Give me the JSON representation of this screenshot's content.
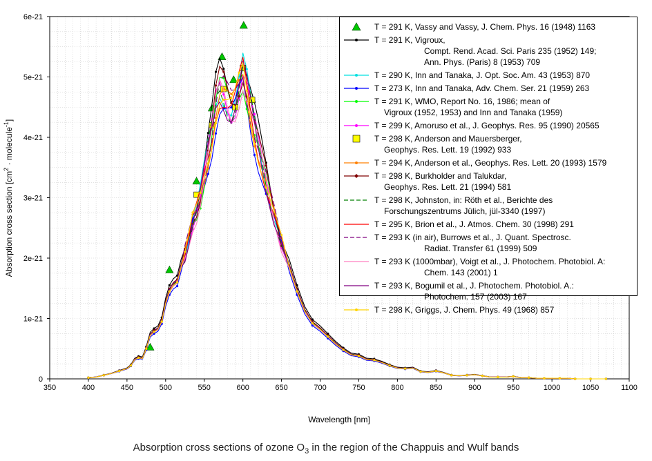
{
  "chart_data": {
    "type": "line",
    "title": "Absorption cross sections of ozone O3 in the region of the Chappuis and Wulf bands",
    "caption_parts": {
      "pre": "Absorption cross sections of ozone O",
      "sub": "3",
      "post": " in the region of the Chappuis and Wulf bands"
    },
    "xlabel": "Wavelength [nm]",
    "ylabel_parts": {
      "a": "Absorption cross section [cm",
      "sup1": "2",
      "b": " · molecule",
      "sup2": "-1",
      "c": "]"
    },
    "xlim": [
      350,
      1100
    ],
    "ylim": [
      0,
      6e-21
    ],
    "x_ticks": [
      "350",
      "400",
      "450",
      "500",
      "550",
      "600",
      "650",
      "700",
      "750",
      "800",
      "850",
      "900",
      "950",
      "1000",
      "1050",
      "1100"
    ],
    "y_ticks": [
      "0",
      "1e-21",
      "2e-21",
      "3e-21",
      "4e-21",
      "5e-21",
      "6e-21"
    ],
    "grid": true,
    "legend_position": "top-right",
    "base_curve": {
      "x": [
        400,
        410,
        420,
        430,
        440,
        450,
        455,
        460,
        465,
        470,
        475,
        480,
        485,
        490,
        495,
        500,
        505,
        510,
        515,
        520,
        525,
        530,
        535,
        540,
        545,
        550,
        555,
        560,
        565,
        570,
        575,
        580,
        585,
        590,
        595,
        600,
        605,
        610,
        615,
        620,
        630,
        640,
        650,
        660,
        670,
        680,
        690,
        700,
        710,
        720,
        730,
        740,
        750,
        760,
        770,
        780,
        790,
        800,
        810,
        820,
        830,
        840,
        850,
        860,
        870,
        880,
        890,
        900,
        910,
        920,
        930,
        940,
        950,
        960,
        970,
        980,
        990,
        1000,
        1010,
        1020,
        1030,
        1040,
        1050,
        1060,
        1070
      ],
      "y": [
        0.02,
        0.03,
        0.06,
        0.09,
        0.13,
        0.17,
        0.22,
        0.32,
        0.35,
        0.34,
        0.5,
        0.72,
        0.78,
        0.82,
        0.95,
        1.25,
        1.45,
        1.55,
        1.6,
        1.85,
        2.05,
        2.3,
        2.6,
        2.75,
        3.0,
        3.35,
        3.7,
        4.05,
        4.5,
        4.75,
        4.7,
        4.55,
        4.45,
        4.55,
        4.8,
        5.05,
        4.75,
        4.4,
        4.1,
        3.8,
        3.25,
        2.7,
        2.25,
        1.85,
        1.45,
        1.12,
        0.92,
        0.82,
        0.7,
        0.58,
        0.48,
        0.4,
        0.38,
        0.32,
        0.31,
        0.27,
        0.22,
        0.18,
        0.17,
        0.18,
        0.12,
        0.11,
        0.13,
        0.1,
        0.06,
        0.05,
        0.06,
        0.07,
        0.05,
        0.03,
        0.03,
        0.03,
        0.04,
        0.02,
        0.02,
        0.01,
        0.01,
        0.01,
        0.01,
        0.01,
        0.0,
        0.0,
        0.0,
        0.0,
        0.0
      ],
      "unit": "1e-21 cm2/molecule"
    },
    "series": [
      {
        "name": "Vassy and Vassy (1948)",
        "color": "#00c800",
        "marker": "triangle",
        "line": false,
        "x": [
          480,
          505,
          540,
          560,
          573,
          588,
          601
        ],
        "y": [
          0.52,
          1.8,
          3.27,
          4.48,
          5.33,
          4.95,
          5.85
        ]
      },
      {
        "name": "Vigroux (1952, 1953)",
        "color": "#000000",
        "marker": "dot",
        "line": true,
        "scale": 1.07
      },
      {
        "name": "Inn and Tanaka (1953)",
        "color": "#00e0e0",
        "marker": "dot",
        "line": true,
        "scale": 1.02
      },
      {
        "name": "Inn and Tanaka (1959)",
        "color": "#0000ff",
        "marker": "dot",
        "line": true,
        "scale": 0.96
      },
      {
        "name": "WMO (1986)",
        "color": "#00ff00",
        "marker": "dot",
        "line": true,
        "scale": 1.0
      },
      {
        "name": "Amoruso et al. (1990)",
        "color": "#ff00ff",
        "marker": "dot",
        "line": true,
        "scale": 1.01
      },
      {
        "name": "Anderson and Mauersberger (1992)",
        "color": "#ffff00",
        "marker": "square",
        "line": false,
        "x": [
          540,
          560,
          575,
          590,
          600,
          612
        ],
        "y": [
          3.05,
          4.2,
          4.8,
          4.5,
          5.15,
          4.62
        ]
      },
      {
        "name": "Anderson et al. (1993)",
        "color": "#ff8000",
        "marker": "dot",
        "line": true,
        "scale": 1.0
      },
      {
        "name": "Burkholder and Talukdar (1994)",
        "color": "#800000",
        "marker": "diamond",
        "line": true,
        "scale": 1.03
      },
      {
        "name": "Johnston (1997)",
        "color": "#008000",
        "marker": "none",
        "line": true,
        "dash": "8,4",
        "scale": 1.01
      },
      {
        "name": "Brion et al. (1998)",
        "color": "#ff0000",
        "marker": "none",
        "line": true,
        "scale": 1.0
      },
      {
        "name": "Burrows et al. (1999)",
        "color": "#800080",
        "marker": "none",
        "line": true,
        "dash": "8,4",
        "scale": 1.02
      },
      {
        "name": "Voigt et al. (2001)",
        "color": "#ff80c0",
        "marker": "none",
        "line": true,
        "scale": 0.99
      },
      {
        "name": "Bogumil et al. (2003)",
        "color": "#800080",
        "marker": "none",
        "line": true,
        "scale": 1.0
      },
      {
        "name": "Griggs (1968)",
        "color": "#ffd400",
        "marker": "dot",
        "line": true,
        "scale": 1.0
      }
    ]
  },
  "legend": [
    {
      "marker": "triangle",
      "color": "#00c800",
      "lines": [
        "T = 291 K, Vassy and Vassy, J. Chem. Phys. 16 (1948) 1163"
      ],
      "indent": "none"
    },
    {
      "marker": "line-dot",
      "color": "#000000",
      "lines": [
        "T = 291 K,  Vigroux,",
        "Compt. Rend. Acad. Sci. Paris 235 (1952) 149;",
        "Ann. Phys. (Paris) 8 (1953) 709"
      ],
      "indent": "deep"
    },
    {
      "marker": "line-dot",
      "color": "#00e0e0",
      "lines": [
        "T = 290 K, Inn and Tanaka, J. Opt. Soc. Am. 43 (1953) 870"
      ],
      "indent": "none"
    },
    {
      "marker": "line-dot",
      "color": "#0000ff",
      "lines": [
        "T = 273 K, Inn and Tanaka, Adv. Chem. Ser. 21 (1959) 263"
      ],
      "indent": "none"
    },
    {
      "marker": "line-dot",
      "color": "#00ff00",
      "lines": [
        "T = 291 K, WMO, Report No. 16, 1986; mean of",
        "Vigroux (1952, 1953) and Inn and Tanaka (1959)"
      ],
      "indent": "shallow"
    },
    {
      "marker": "line-dot",
      "color": "#ff00ff",
      "lines": [
        "T = 299 K, Amoruso et al., J. Geophys. Res. 95 (1990) 20565"
      ],
      "indent": "none"
    },
    {
      "marker": "square",
      "color": "#ffff00",
      "lines": [
        "T = 298 K, Anderson and Mauersberger,",
        "Geophys. Res. Lett. 19 (1992) 933"
      ],
      "indent": "shallow"
    },
    {
      "marker": "line-dot",
      "color": "#ff8000",
      "lines": [
        "T = 294 K, Anderson et al., Geophys. Res. Lett. 20 (1993) 1579"
      ],
      "indent": "none"
    },
    {
      "marker": "line-diamond",
      "color": "#800000",
      "lines": [
        "T = 298 K, Burkholder and Talukdar,",
        "Geophys. Res. Lett. 21 (1994) 581"
      ],
      "indent": "shallow"
    },
    {
      "marker": "dash",
      "color": "#008000",
      "lines": [
        "T = 298 K, Johnston, in: Röth et al., Berichte des",
        "Forschungszentrums Jülich, jül-3340 (1997)"
      ],
      "indent": "shallow"
    },
    {
      "marker": "line",
      "color": "#ff0000",
      "lines": [
        "T = 295 K, Brion et al., J. Atmos. Chem. 30 (1998) 291"
      ],
      "indent": "none"
    },
    {
      "marker": "dash",
      "color": "#800080",
      "lines": [
        "T = 293 K (in air), Burrows et al., J. Quant. Spectrosc.",
        "Radiat. Transfer 61 (1999) 509"
      ],
      "indent": "deep"
    },
    {
      "marker": "line",
      "color": "#ff80c0",
      "lines": [
        "T = 293 K (1000mbar), Voigt et al., J. Photochem. Photobiol. A:",
        "Chem. 143 (2001) 1"
      ],
      "indent": "deep"
    },
    {
      "marker": "line",
      "color": "#800080",
      "lines": [
        "T = 293 K, Bogumil et al., J. Photochem. Photobiol. A.:",
        "Photochem. 157 (2003) 167"
      ],
      "indent": "deep"
    },
    {
      "marker": "line-dot",
      "color": "#ffd400",
      "lines": [
        "T = 298 K, Griggs, J. Chem. Phys. 49 (1968) 857"
      ],
      "indent": "none"
    }
  ]
}
